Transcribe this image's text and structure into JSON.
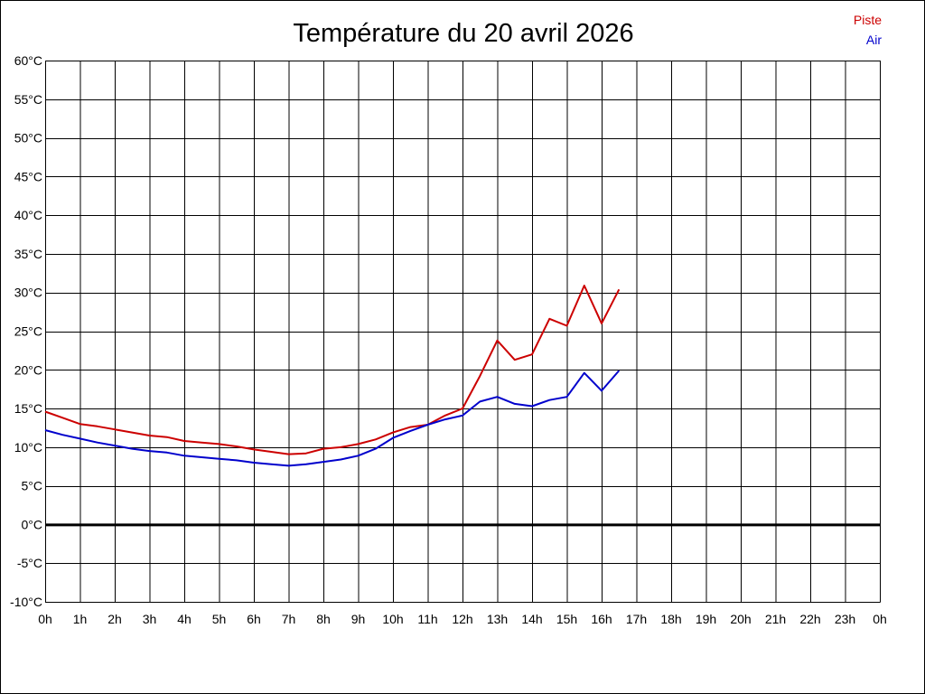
{
  "chart_data": {
    "type": "line",
    "title": "Température du 20 avril 2026",
    "xlabel": "",
    "ylabel": "",
    "x_tick_labels": [
      "0h",
      "1h",
      "2h",
      "3h",
      "4h",
      "5h",
      "6h",
      "7h",
      "8h",
      "9h",
      "10h",
      "11h",
      "12h",
      "13h",
      "14h",
      "15h",
      "16h",
      "17h",
      "18h",
      "19h",
      "20h",
      "21h",
      "22h",
      "23h",
      "0h"
    ],
    "y_ticks": [
      60,
      55,
      50,
      45,
      40,
      35,
      30,
      25,
      20,
      15,
      10,
      5,
      0,
      -5,
      -10
    ],
    "y_tick_labels": [
      "60°C",
      "55°C",
      "50°C",
      "45°C",
      "40°C",
      "35°C",
      "30°C",
      "25°C",
      "20°C",
      "15°C",
      "10°C",
      "5°C",
      "0°C",
      "-5°C",
      "-10°C"
    ],
    "xlim": [
      0,
      24
    ],
    "ylim": [
      -10,
      60
    ],
    "grid": true,
    "legend_position": "top-right",
    "zero_line_color": "#000000",
    "series": [
      {
        "name": "Piste",
        "color": "#cc0000",
        "x": [
          0,
          0.5,
          1,
          1.5,
          2,
          2.5,
          3,
          3.5,
          4,
          4.5,
          5,
          5.5,
          6,
          6.5,
          7,
          7.5,
          8,
          8.5,
          9,
          9.5,
          10,
          10.5,
          11,
          11.5,
          12,
          12.5,
          13,
          13.5,
          14,
          14.5,
          15,
          15.5,
          16,
          16.5
        ],
        "y": [
          14.6,
          13.8,
          13.0,
          12.7,
          12.3,
          11.9,
          11.5,
          11.3,
          10.8,
          10.6,
          10.4,
          10.1,
          9.7,
          9.4,
          9.1,
          9.2,
          9.8,
          10.0,
          10.4,
          11.0,
          11.9,
          12.6,
          12.9,
          14.1,
          15.0,
          19.2,
          23.8,
          21.3,
          22.0,
          26.6,
          25.7,
          30.9,
          26.0,
          30.4
        ]
      },
      {
        "name": "Air",
        "color": "#0000cc",
        "x": [
          0,
          0.5,
          1,
          1.5,
          2,
          2.5,
          3,
          3.5,
          4,
          4.5,
          5,
          5.5,
          6,
          6.5,
          7,
          7.5,
          8,
          8.5,
          9,
          9.5,
          10,
          10.5,
          11,
          11.5,
          12,
          12.5,
          13,
          13.5,
          14,
          14.5,
          15,
          15.5,
          16,
          16.5
        ],
        "y": [
          12.2,
          11.6,
          11.1,
          10.6,
          10.2,
          9.8,
          9.5,
          9.3,
          8.9,
          8.7,
          8.5,
          8.3,
          8.0,
          7.8,
          7.6,
          7.8,
          8.1,
          8.4,
          8.9,
          9.8,
          11.2,
          12.1,
          12.9,
          13.6,
          14.1,
          15.9,
          16.5,
          15.6,
          15.3,
          16.1,
          16.5,
          19.6,
          17.3,
          19.9
        ]
      }
    ]
  }
}
